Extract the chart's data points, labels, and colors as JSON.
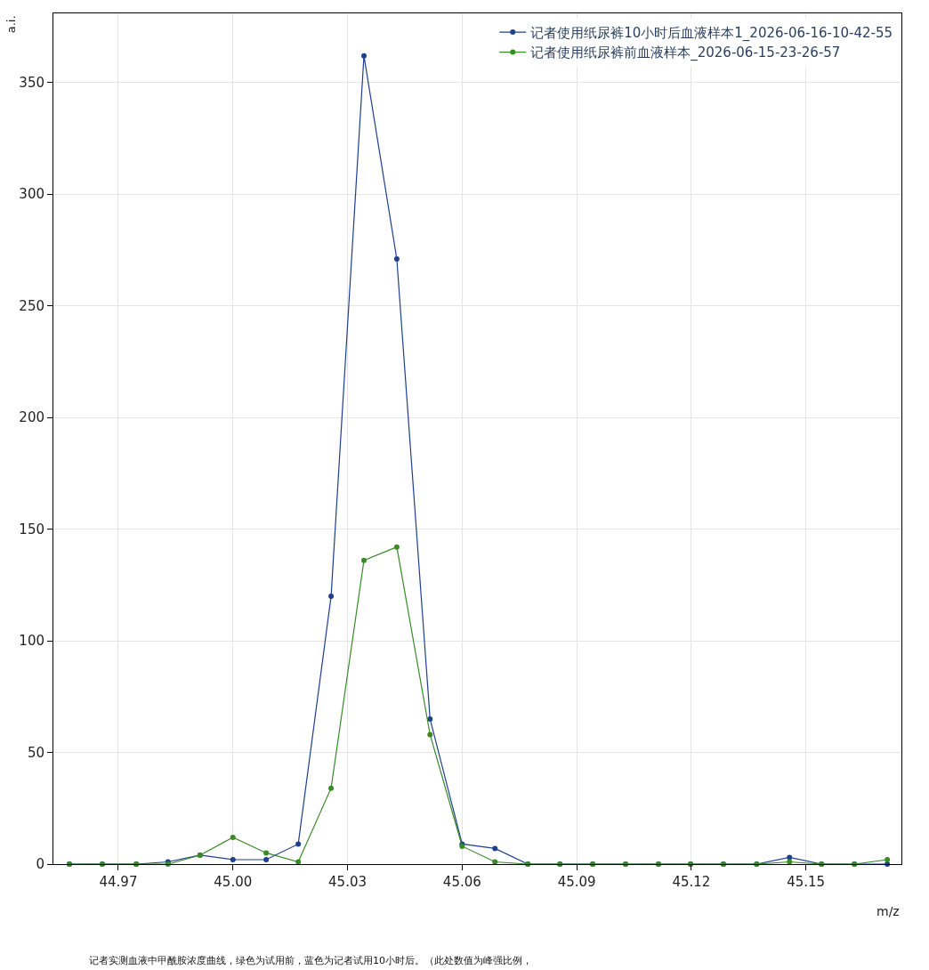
{
  "chart_data": {
    "type": "line",
    "xlabel": "m/z",
    "ylabel": "a.i.",
    "x": [
      44.9572,
      44.9658,
      44.9747,
      44.983,
      44.9914,
      45.0,
      45.0087,
      45.0171,
      45.0257,
      45.0343,
      45.0429,
      45.0516,
      45.06,
      45.0686,
      45.0772,
      45.0856,
      45.0942,
      45.1028,
      45.1114,
      45.1198,
      45.1284,
      45.1371,
      45.1457,
      45.1541,
      45.1627,
      45.1713
    ],
    "series": [
      {
        "name": "记者使用纸尿裤10小时后血液样本1_2026-06-16-10-42-55",
        "color": "#1f3f8f",
        "values": [
          0,
          0,
          0,
          1,
          4,
          2,
          2,
          9,
          120,
          362,
          271,
          65,
          9,
          7,
          0,
          0,
          0,
          0,
          0,
          0,
          0,
          0,
          3,
          0,
          0,
          0
        ]
      },
      {
        "name": "记者使用纸尿裤前血液样本_2026-06-15-23-26-57",
        "color": "#3a8a2a",
        "values": [
          0,
          0,
          0,
          0,
          4,
          12,
          5,
          1,
          34,
          136,
          142,
          58,
          8,
          1,
          0,
          0,
          0,
          0,
          0,
          0,
          0,
          0,
          1,
          0,
          0,
          2
        ]
      }
    ],
    "xlim": [
      44.953,
      45.175
    ],
    "xticks": [
      {
        "value": 44.97,
        "label": "44.97"
      },
      {
        "value": 45.0,
        "label": "45.00"
      },
      {
        "value": 45.03,
        "label": "45.03"
      },
      {
        "value": 45.06,
        "label": "45.06"
      },
      {
        "value": 45.09,
        "label": "45.09"
      },
      {
        "value": 45.12,
        "label": "45.12"
      },
      {
        "value": 45.15,
        "label": "45.15"
      }
    ],
    "ylim": [
      0,
      381
    ],
    "yticks": [
      0,
      50,
      100,
      150,
      200,
      250,
      300,
      350
    ],
    "grid": true,
    "legend": "top right",
    "marker": "circle",
    "line_style": "solid",
    "annotations": [
      "记者实测血液中甲酰胺浓度曲线，绿色为试用前，蓝色为记者试用10小时后。（此处数值为峰强比例，"
    ]
  }
}
